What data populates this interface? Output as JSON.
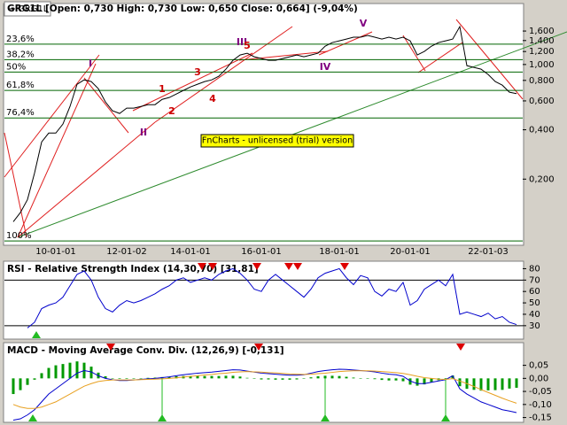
{
  "chart_data": [
    {
      "type": "line",
      "title": "GRG1L [Open: 0,730 High: 0,730 Low: 0,650 Close: 0,664] (-9,04%)",
      "log_scale": true,
      "grid": false,
      "categories": [
        null,
        null,
        null,
        null,
        null,
        null,
        "10-01-01",
        null,
        null,
        null,
        null,
        null,
        null,
        null,
        null,
        null,
        "12-01-02",
        null,
        null,
        null,
        null,
        null,
        null,
        null,
        null,
        "14-01-01",
        null,
        null,
        null,
        null,
        null,
        null,
        null,
        null,
        null,
        "16-01-01",
        null,
        null,
        null,
        null,
        null,
        null,
        null,
        null,
        null,
        null,
        "18-01-01",
        null,
        null,
        null,
        null,
        null,
        null,
        null,
        null,
        null,
        "20-01-01",
        null,
        null,
        null,
        null,
        null,
        null,
        null,
        null,
        null,
        null,
        "22-01-03",
        null,
        null,
        null,
        null
      ],
      "series": [
        {
          "name": "GRG1L",
          "color": "#000000",
          "values": [
            0.11,
            0.125,
            0.15,
            0.218,
            0.337,
            0.382,
            0.382,
            0.433,
            0.555,
            0.758,
            0.806,
            0.787,
            0.712,
            0.591,
            0.522,
            0.503,
            0.542,
            0.542,
            0.555,
            0.569,
            0.569,
            0.613,
            0.629,
            0.661,
            0.695,
            0.73,
            0.758,
            0.787,
            0.806,
            0.848,
            0.937,
            1.061,
            1.143,
            1.172,
            1.115,
            1.088,
            1.061,
            1.061,
            1.088,
            1.115,
            1.143,
            1.115,
            1.143,
            1.172,
            1.294,
            1.361,
            1.395,
            1.43,
            1.467,
            1.467,
            1.504,
            1.467,
            1.43,
            1.467,
            1.43,
            1.467,
            1.395,
            1.143,
            1.202,
            1.294,
            1.361,
            1.395,
            1.43,
            1.703,
            0.984,
            0.96,
            0.937,
            0.869,
            0.787,
            0.748,
            0.678,
            0.664
          ]
        }
      ],
      "ylim": [
        0.08,
        2.24
      ],
      "yticks": [
        {
          "value": 1.6,
          "label": "1,600"
        },
        {
          "value": 1.4,
          "label": "1,400"
        },
        {
          "value": 1.2,
          "label": "1,200"
        },
        {
          "value": 1.0,
          "label": "1,000"
        },
        {
          "value": 0.8,
          "label": "0,800"
        },
        {
          "value": 0.6,
          "label": "0,600"
        },
        {
          "value": 0.4,
          "label": "0,400"
        },
        {
          "value": 0.2,
          "label": "0,200"
        }
      ],
      "fib_levels": [
        {
          "label": "23,6%",
          "value": 1.33
        },
        {
          "label": "38,2%",
          "value": 1.07
        },
        {
          "label": "50%",
          "value": 0.9
        },
        {
          "label": "61,8%",
          "value": 0.695
        },
        {
          "label": "76,4%",
          "value": 0.472
        },
        {
          "label": "100%",
          "value": 0.084
        }
      ],
      "fib_color": "#006400",
      "wave_labels": [
        "I",
        "II",
        "III",
        "IV",
        "V",
        "1",
        "2",
        "3",
        "4",
        "5"
      ],
      "watermark": "FnCharts - unlicensed (trial) version"
    },
    {
      "type": "line",
      "title": "RSI - Relative Strength Index (14,30,70) [31,81]",
      "color": "#0000cc",
      "values": [
        null,
        null,
        28,
        33,
        45,
        48,
        50,
        55,
        65,
        75,
        78,
        70,
        55,
        45,
        42,
        48,
        52,
        50,
        52,
        55,
        58,
        62,
        65,
        70,
        72,
        68,
        70,
        72,
        70,
        75,
        78,
        80,
        76,
        70,
        62,
        60,
        70,
        75,
        70,
        65,
        60,
        55,
        62,
        72,
        76,
        78,
        80,
        72,
        66,
        74,
        72,
        60,
        56,
        62,
        60,
        68,
        48,
        52,
        62,
        66,
        70,
        65,
        75,
        40,
        42,
        40,
        38,
        41,
        36,
        38,
        33,
        31
      ],
      "ylim": [
        19,
        85
      ],
      "yticks": [
        80,
        70,
        60,
        50,
        40,
        30
      ],
      "levels": [
        70,
        30
      ]
    },
    {
      "type": "line",
      "title": "MACD - Moving Average Conv. Div. (12,26,9) [-0,131]",
      "series": [
        {
          "color": "#0000cc",
          "values": [
            -0.16,
            -0.155,
            -0.14,
            -0.12,
            -0.09,
            -0.06,
            -0.04,
            -0.02,
            0.0,
            0.02,
            0.03,
            0.025,
            0.01,
            0.0,
            -0.005,
            -0.008,
            -0.008,
            -0.006,
            -0.004,
            -0.002,
            0.0,
            0.003,
            0.006,
            0.01,
            0.014,
            0.017,
            0.02,
            0.022,
            0.024,
            0.027,
            0.03,
            0.033,
            0.032,
            0.028,
            0.024,
            0.02,
            0.018,
            0.016,
            0.014,
            0.012,
            0.012,
            0.014,
            0.02,
            0.026,
            0.03,
            0.033,
            0.035,
            0.034,
            0.032,
            0.03,
            0.028,
            0.025,
            0.02,
            0.016,
            0.014,
            0.008,
            -0.01,
            -0.02,
            -0.02,
            -0.015,
            -0.01,
            -0.005,
            0.01,
            -0.04,
            -0.06,
            -0.075,
            -0.09,
            -0.1,
            -0.11,
            -0.12,
            -0.125,
            -0.131
          ]
        },
        {
          "color": "#e8a020",
          "values": [
            -0.1,
            -0.11,
            -0.115,
            -0.115,
            -0.11,
            -0.1,
            -0.09,
            -0.075,
            -0.06,
            -0.045,
            -0.03,
            -0.02,
            -0.012,
            -0.008,
            -0.006,
            -0.006,
            -0.006,
            -0.006,
            -0.005,
            -0.004,
            -0.003,
            -0.002,
            0.0,
            0.002,
            0.005,
            0.008,
            0.01,
            0.013,
            0.015,
            0.018,
            0.02,
            0.023,
            0.025,
            0.026,
            0.025,
            0.024,
            0.022,
            0.021,
            0.019,
            0.017,
            0.016,
            0.015,
            0.016,
            0.018,
            0.02,
            0.023,
            0.026,
            0.028,
            0.029,
            0.029,
            0.029,
            0.028,
            0.026,
            0.024,
            0.022,
            0.019,
            0.014,
            0.008,
            0.003,
            0.0,
            -0.003,
            -0.004,
            -0.001,
            -0.01,
            -0.02,
            -0.031,
            -0.043,
            -0.054,
            -0.065,
            -0.076,
            -0.086,
            -0.095
          ]
        }
      ],
      "histogram": {
        "color": "#009900",
        "values": [
          -0.06,
          -0.045,
          -0.025,
          -0.005,
          0.02,
          0.04,
          0.05,
          0.055,
          0.06,
          0.065,
          0.06,
          0.045,
          0.022,
          0.008,
          0.001,
          -0.002,
          -0.002,
          0.0,
          0.001,
          0.002,
          0.003,
          0.005,
          0.006,
          0.008,
          0.009,
          0.009,
          0.01,
          0.009,
          0.009,
          0.009,
          0.01,
          0.01,
          0.007,
          0.002,
          -0.001,
          -0.004,
          -0.004,
          -0.005,
          -0.005,
          -0.005,
          -0.004,
          -0.001,
          0.004,
          0.008,
          0.01,
          0.01,
          0.009,
          0.006,
          0.003,
          0.001,
          -0.001,
          -0.003,
          -0.006,
          -0.008,
          -0.008,
          -0.011,
          -0.024,
          -0.028,
          -0.023,
          -0.015,
          -0.007,
          -0.001,
          0.011,
          -0.03,
          -0.04,
          -0.044,
          -0.047,
          -0.046,
          -0.045,
          -0.044,
          -0.039,
          -0.036
        ]
      },
      "ylim": [
        -0.165,
        0.13
      ],
      "yticks": [
        {
          "value": 0.05,
          "label": "0,05"
        },
        {
          "value": 0.0,
          "label": "0,00"
        },
        {
          "value": -0.05,
          "label": "-0,05"
        },
        {
          "value": -0.1,
          "label": "-0,10"
        },
        {
          "value": -0.15,
          "label": "-0,15"
        }
      ]
    }
  ]
}
